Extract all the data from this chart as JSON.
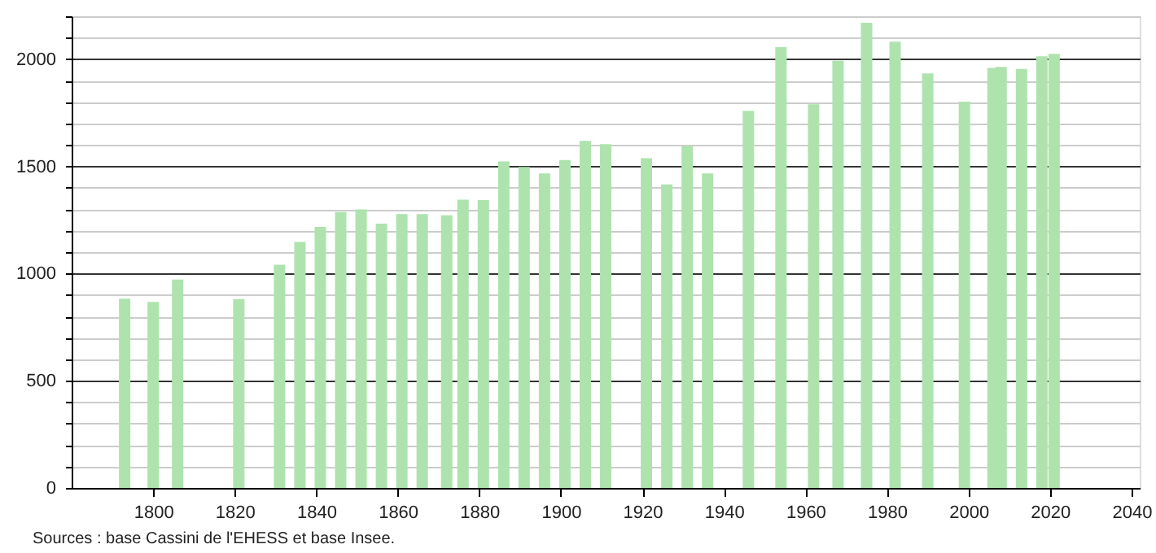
{
  "chart_data": {
    "type": "bar",
    "x": [
      1793,
      1800,
      1806,
      1821,
      1831,
      1836,
      1841,
      1846,
      1851,
      1856,
      1861,
      1866,
      1872,
      1876,
      1881,
      1886,
      1891,
      1896,
      1901,
      1906,
      1911,
      1921,
      1926,
      1931,
      1936,
      1946,
      1954,
      1962,
      1968,
      1975,
      1982,
      1990,
      1999,
      2006,
      2008,
      2013,
      2018,
      2021
    ],
    "series": [
      {
        "color": "#aee3ae",
        "values": [
          883,
          868,
          972,
          881,
          1041,
          1147,
          1218,
          1287,
          1299,
          1233,
          1277,
          1277,
          1272,
          1345,
          1343,
          1523,
          1497,
          1467,
          1530,
          1619,
          1604,
          1538,
          1416,
          1596,
          1467,
          1759,
          2056,
          1789,
          1992,
          2170,
          2081,
          1934,
          1802,
          1959,
          1964,
          1954,
          2013,
          2025
        ]
      }
    ],
    "xlim": [
      1780,
      2042
    ],
    "xticks": [
      1800,
      1820,
      1840,
      1860,
      1880,
      1900,
      1920,
      1940,
      1960,
      1980,
      2000,
      2020,
      2040
    ],
    "ylim": [
      0,
      2200
    ],
    "yticks": [
      0,
      {
        "value": 100,
        "label": null
      },
      {
        "value": 200,
        "label": null
      },
      {
        "value": 300,
        "label": null
      },
      {
        "value": 400,
        "label": null
      },
      500,
      {
        "value": 600,
        "label": null
      },
      {
        "value": 700,
        "label": null
      },
      {
        "value": 800,
        "label": null
      },
      {
        "value": 900,
        "label": null
      },
      1000,
      {
        "value": 1100,
        "label": null
      },
      {
        "value": 1200,
        "label": null
      },
      {
        "value": 1300,
        "label": null
      },
      {
        "value": 1400,
        "label": null
      },
      1500,
      {
        "value": 1600,
        "label": null
      },
      {
        "value": 1700,
        "label": null
      },
      {
        "value": 1800,
        "label": null
      },
      {
        "value": 1900,
        "label": null
      },
      2000,
      {
        "value": 2100,
        "label": null
      },
      {
        "value": 2200,
        "label": null
      }
    ],
    "grid": "y",
    "annotations": [
      "Sources : base Cassini de l'EHESS et base Insee."
    ]
  }
}
